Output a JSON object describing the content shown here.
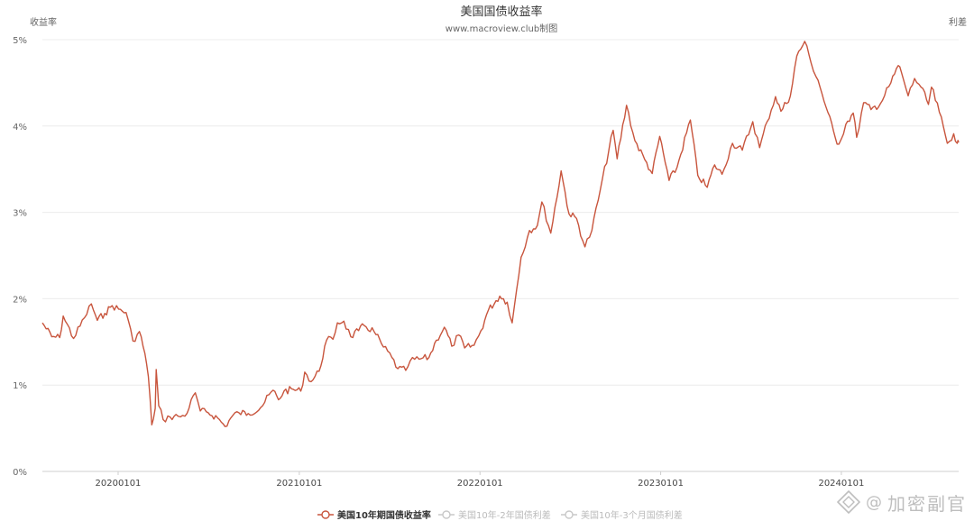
{
  "chart_data": {
    "type": "line",
    "title": "美国国债收益率",
    "subtitle": "www.macroview.club制图",
    "ylabel_left": "收益率",
    "ylabel_right": "利差",
    "ylim": [
      0,
      5
    ],
    "y_ticks": [
      "0%",
      "1%",
      "2%",
      "3%",
      "4%",
      "5%"
    ],
    "x_ticks": [
      "20200101",
      "20210101",
      "20220101",
      "20230101",
      "20240101"
    ],
    "x_range": [
      "2019-08-01",
      "2024-08-25"
    ],
    "grid": true,
    "legend_position": "bottom-center",
    "series": [
      {
        "name": "美国10年期国债收益率",
        "color": "#c8553d",
        "visible": true,
        "points": [
          [
            "2019-08-01",
            1.72
          ],
          [
            "2019-08-20",
            1.56
          ],
          [
            "2019-09-05",
            1.55
          ],
          [
            "2019-09-12",
            1.8
          ],
          [
            "2019-10-03",
            1.54
          ],
          [
            "2019-10-25",
            1.78
          ],
          [
            "2019-11-08",
            1.94
          ],
          [
            "2019-11-20",
            1.75
          ],
          [
            "2019-12-05",
            1.83
          ],
          [
            "2019-12-20",
            1.92
          ],
          [
            "2020-01-02",
            1.88
          ],
          [
            "2020-01-17",
            1.84
          ],
          [
            "2020-01-31",
            1.51
          ],
          [
            "2020-02-13",
            1.62
          ],
          [
            "2020-02-24",
            1.37
          ],
          [
            "2020-03-02",
            1.1
          ],
          [
            "2020-03-09",
            0.54
          ],
          [
            "2020-03-16",
            0.73
          ],
          [
            "2020-03-18",
            1.18
          ],
          [
            "2020-03-23",
            0.76
          ],
          [
            "2020-04-01",
            0.6
          ],
          [
            "2020-04-15",
            0.63
          ],
          [
            "2020-05-01",
            0.64
          ],
          [
            "2020-05-15",
            0.64
          ],
          [
            "2020-06-05",
            0.91
          ],
          [
            "2020-06-15",
            0.7
          ],
          [
            "2020-07-01",
            0.68
          ],
          [
            "2020-07-20",
            0.62
          ],
          [
            "2020-08-04",
            0.52
          ],
          [
            "2020-08-20",
            0.65
          ],
          [
            "2020-09-01",
            0.68
          ],
          [
            "2020-09-20",
            0.67
          ],
          [
            "2020-10-15",
            0.74
          ],
          [
            "2020-11-09",
            0.94
          ],
          [
            "2020-11-20",
            0.83
          ],
          [
            "2020-12-01",
            0.93
          ],
          [
            "2020-12-20",
            0.95
          ],
          [
            "2021-01-04",
            0.93
          ],
          [
            "2021-01-12",
            1.15
          ],
          [
            "2021-01-25",
            1.04
          ],
          [
            "2021-02-10",
            1.16
          ],
          [
            "2021-02-25",
            1.52
          ],
          [
            "2021-03-10",
            1.53
          ],
          [
            "2021-03-19",
            1.72
          ],
          [
            "2021-04-01",
            1.74
          ],
          [
            "2021-04-15",
            1.56
          ],
          [
            "2021-05-01",
            1.63
          ],
          [
            "2021-05-12",
            1.69
          ],
          [
            "2021-06-01",
            1.62
          ],
          [
            "2021-06-20",
            1.44
          ],
          [
            "2021-07-07",
            1.32
          ],
          [
            "2021-07-19",
            1.19
          ],
          [
            "2021-08-04",
            1.17
          ],
          [
            "2021-08-13",
            1.28
          ],
          [
            "2021-08-31",
            1.3
          ],
          [
            "2021-09-20",
            1.32
          ],
          [
            "2021-10-05",
            1.52
          ],
          [
            "2021-10-21",
            1.67
          ],
          [
            "2021-11-05",
            1.45
          ],
          [
            "2021-11-19",
            1.58
          ],
          [
            "2021-12-01",
            1.43
          ],
          [
            "2021-12-20",
            1.46
          ],
          [
            "2022-01-03",
            1.63
          ],
          [
            "2022-01-18",
            1.87
          ],
          [
            "2022-02-10",
            2.03
          ],
          [
            "2022-02-25",
            1.96
          ],
          [
            "2022-03-07",
            1.72
          ],
          [
            "2022-03-25",
            2.48
          ],
          [
            "2022-04-11",
            2.79
          ],
          [
            "2022-04-27",
            2.85
          ],
          [
            "2022-05-06",
            3.12
          ],
          [
            "2022-05-24",
            2.76
          ],
          [
            "2022-06-14",
            3.48
          ],
          [
            "2022-06-30",
            2.98
          ],
          [
            "2022-07-15",
            2.93
          ],
          [
            "2022-08-01",
            2.6
          ],
          [
            "2022-08-15",
            2.79
          ],
          [
            "2022-09-01",
            3.26
          ],
          [
            "2022-09-27",
            3.95
          ],
          [
            "2022-10-05",
            3.62
          ],
          [
            "2022-10-24",
            4.24
          ],
          [
            "2022-11-10",
            3.83
          ],
          [
            "2022-11-30",
            3.61
          ],
          [
            "2022-12-15",
            3.45
          ],
          [
            "2022-12-30",
            3.88
          ],
          [
            "2023-01-18",
            3.37
          ],
          [
            "2023-02-03",
            3.52
          ],
          [
            "2023-03-02",
            4.07
          ],
          [
            "2023-03-17",
            3.43
          ],
          [
            "2023-04-05",
            3.29
          ],
          [
            "2023-04-20",
            3.55
          ],
          [
            "2023-05-05",
            3.44
          ],
          [
            "2023-05-26",
            3.8
          ],
          [
            "2023-06-15",
            3.72
          ],
          [
            "2023-07-06",
            4.05
          ],
          [
            "2023-07-20",
            3.75
          ],
          [
            "2023-08-04",
            4.05
          ],
          [
            "2023-08-21",
            4.34
          ],
          [
            "2023-09-01",
            4.17
          ],
          [
            "2023-09-20",
            4.35
          ],
          [
            "2023-10-03",
            4.81
          ],
          [
            "2023-10-19",
            4.98
          ],
          [
            "2023-11-01",
            4.73
          ],
          [
            "2023-11-15",
            4.53
          ],
          [
            "2023-12-01",
            4.22
          ],
          [
            "2023-12-20",
            3.86
          ],
          [
            "2023-12-27",
            3.79
          ],
          [
            "2024-01-10",
            4.02
          ],
          [
            "2024-01-25",
            4.15
          ],
          [
            "2024-02-01",
            3.87
          ],
          [
            "2024-02-15",
            4.27
          ],
          [
            "2024-03-01",
            4.19
          ],
          [
            "2024-03-20",
            4.26
          ],
          [
            "2024-04-10",
            4.5
          ],
          [
            "2024-04-25",
            4.7
          ],
          [
            "2024-05-01",
            4.63
          ],
          [
            "2024-05-15",
            4.35
          ],
          [
            "2024-05-28",
            4.55
          ],
          [
            "2024-06-10",
            4.45
          ],
          [
            "2024-06-25",
            4.25
          ],
          [
            "2024-07-01",
            4.45
          ],
          [
            "2024-07-17",
            4.16
          ],
          [
            "2024-08-02",
            3.8
          ],
          [
            "2024-08-15",
            3.91
          ],
          [
            "2024-08-22",
            3.8
          ],
          [
            "2024-08-25",
            3.81
          ]
        ]
      },
      {
        "name": "美国10年-2年国债利差",
        "color": "#c0c0c0",
        "visible": false
      },
      {
        "name": "美国10年-3个月国债利差",
        "color": "#c0c0c0",
        "visible": false
      }
    ]
  },
  "watermark": {
    "at": "@",
    "text": "加密副官"
  }
}
